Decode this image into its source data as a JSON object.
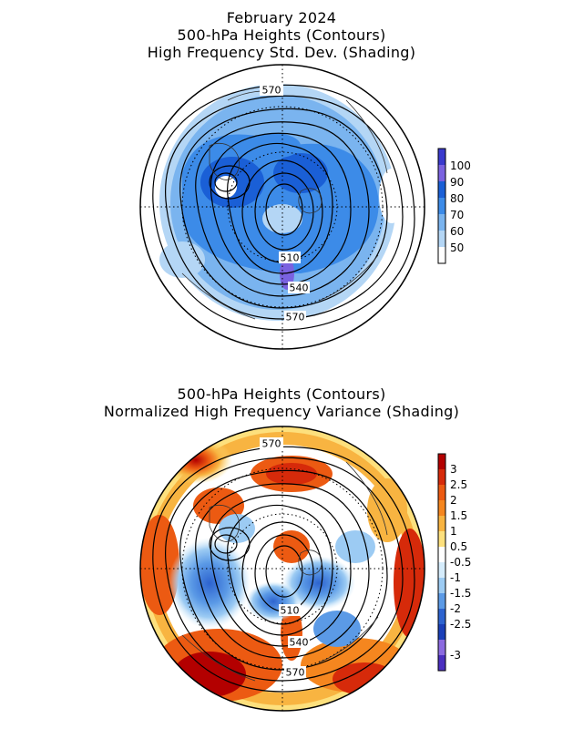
{
  "top_panel": {
    "title_lines": [
      "February 2024",
      "500-hPa Heights (Contours)",
      "High Frequency Std. Dev. (Shading)"
    ],
    "contour_labels": [
      "570",
      "510",
      "540",
      "570"
    ],
    "colorbar": {
      "labels": [
        "100",
        "90",
        "80",
        "70",
        "60",
        "50"
      ],
      "colors": [
        "#3a3acd",
        "#7a62e0",
        "#1a5fd6",
        "#3c8be8",
        "#7ab4ef",
        "#b4d6f5",
        "#ffffff"
      ]
    }
  },
  "bottom_panel": {
    "title_lines": [
      "500-hPa Heights (Contours)",
      "Normalized High Frequency Variance (Shading)"
    ],
    "contour_labels": [
      "570",
      "510",
      "540",
      "570"
    ],
    "colorbar": {
      "labels": [
        "3",
        "2.5",
        "2",
        "1.5",
        "1",
        "0.5",
        "-0.5",
        "-1",
        "-1.5",
        "-2",
        "-2.5",
        "-3"
      ],
      "colors": [
        "#b30000",
        "#d62a0a",
        "#ec5a12",
        "#f5861f",
        "#f8b441",
        "#fde07d",
        "#ffffff",
        "#d5ecfb",
        "#9ccbf3",
        "#5b9ae6",
        "#2d63cf",
        "#1a3fb8",
        "#8b6ae0",
        "#4b2fc0"
      ]
    }
  }
}
